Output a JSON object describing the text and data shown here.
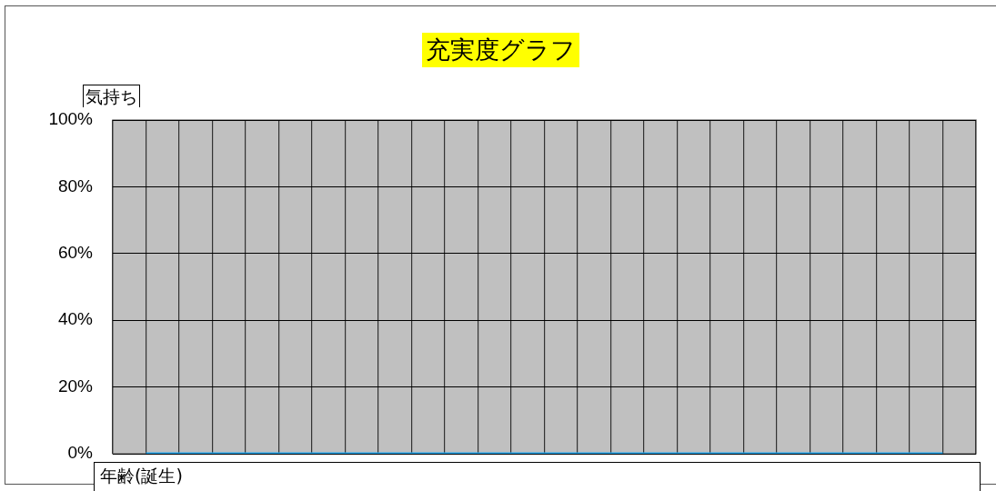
{
  "chart_data": {
    "type": "line",
    "title": "充実度グラフ",
    "xlabel": "年齢(誕生)",
    "ylabel": "気持ち",
    "categories": [
      null,
      null,
      null,
      null,
      null,
      null,
      null,
      null,
      null,
      null,
      null,
      null,
      null,
      null,
      null,
      null,
      null,
      null,
      null,
      null,
      null,
      null,
      null,
      null,
      null,
      null,
      null
    ],
    "series": [
      {
        "color": "#1ea0e6",
        "values": [
          null,
          0,
          0,
          0,
          0,
          0,
          0,
          0,
          0,
          0,
          0,
          0,
          0,
          0,
          0,
          0,
          0,
          0,
          0,
          0,
          0,
          0,
          0,
          0,
          0,
          0,
          null
        ]
      }
    ],
    "ylim": [
      0,
      100
    ],
    "yticks": [
      {
        "value": 0,
        "label": "0%"
      },
      {
        "value": 20,
        "label": "20%"
      },
      {
        "value": 40,
        "label": "40%"
      },
      {
        "value": 60,
        "label": "60%"
      },
      {
        "value": 80,
        "label": "80%"
      },
      {
        "value": 100,
        "label": "100%"
      }
    ],
    "tick_labels": "y",
    "grid": true,
    "legend": false,
    "marker": "none",
    "line_style": "solid"
  }
}
